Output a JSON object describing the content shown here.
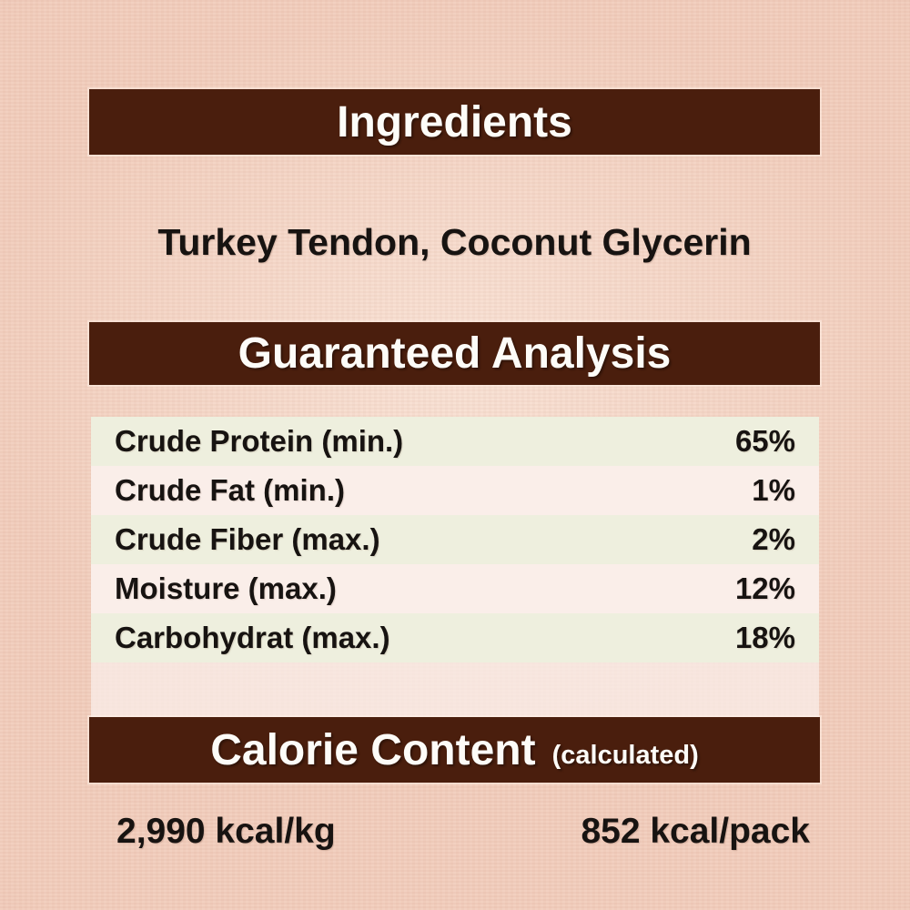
{
  "colors": {
    "page_bg": "#f2cdbc",
    "bar_brown": "#4a1e0d",
    "bar_text": "#fdfcf8",
    "row_green": "#eeefde",
    "row_pink": "#faeee9",
    "body_text": "#171311"
  },
  "ingredients": {
    "title": "Ingredients",
    "items": "Turkey Tendon, Coconut Glycerin"
  },
  "guaranteed_analysis": {
    "title": "Guaranteed Analysis",
    "rows": [
      {
        "label": "Crude Protein (min.)",
        "value": "65%"
      },
      {
        "label": "Crude Fat (min.)",
        "value": "1%"
      },
      {
        "label": "Crude Fiber (max.)",
        "value": "2%"
      },
      {
        "label": "Moisture (max.)",
        "value": "12%"
      },
      {
        "label": "Carbohydrat (max.)",
        "value": "18%"
      }
    ]
  },
  "calorie_content": {
    "title": "Calorie Content",
    "note": "(calculated)",
    "per_kg": "2,990 kcal/kg",
    "per_pack": "852 kcal/pack"
  }
}
